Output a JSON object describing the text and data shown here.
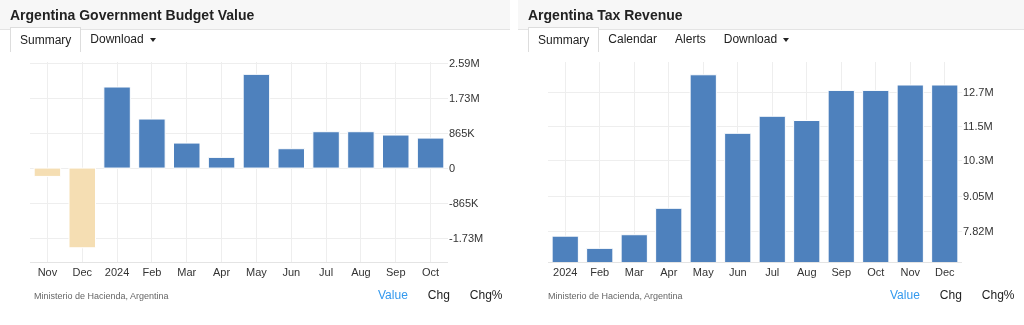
{
  "chart_data": [
    {
      "type": "bar",
      "title": "Argentina Government Budget Value",
      "categories": [
        "Nov",
        "Dec",
        "2024",
        "Feb",
        "Mar",
        "Apr",
        "May",
        "Jun",
        "Jul",
        "Aug",
        "Sep",
        "Oct"
      ],
      "values": [
        -206000,
        -1969000,
        2002000,
        1211000,
        618000,
        264000,
        2315000,
        478000,
        898000,
        898000,
        816000,
        741000
      ],
      "colors": [
        "#f5deb3",
        "#f5deb3",
        "#4e81bd",
        "#4e81bd",
        "#4e81bd",
        "#4e81bd",
        "#4e81bd",
        "#4e81bd",
        "#4e81bd",
        "#4e81bd",
        "#4e81bd",
        "#4e81bd"
      ],
      "ylim": [
        -2320000,
        2620000
      ],
      "yticks": [
        {
          "value": -1730000,
          "label": "-1.73M"
        },
        {
          "value": -865000,
          "label": "-865K"
        },
        0,
        {
          "value": 865000,
          "label": "865K"
        },
        {
          "value": 1730000,
          "label": "1.73M"
        },
        {
          "value": 2590000,
          "label": "2.59M"
        }
      ],
      "grid": true,
      "annotations": [
        "Summary",
        "Download",
        "Ministerio de Hacienda, Argentina",
        "Value",
        "Chg",
        "Chg%"
      ]
    },
    {
      "type": "bar",
      "title": "Argentina Tax Revenue",
      "categories": [
        "2024",
        "Feb",
        "Mar",
        "Apr",
        "May",
        "Jun",
        "Jul",
        "Aug",
        "Sep",
        "Oct",
        "Nov",
        "Dec"
      ],
      "values": [
        7640000,
        7210000,
        7690000,
        8620000,
        13320000,
        11260000,
        11860000,
        11710000,
        12770000,
        12770000,
        12960000,
        12960000
      ],
      "color": "#4e81bd",
      "ylim": [
        6730000,
        13770000
      ],
      "yticks": [
        {
          "value": 7820000,
          "label": "7.82M"
        },
        {
          "value": 9050000,
          "label": "9.05M"
        },
        {
          "value": 10300000,
          "label": "10.3M"
        },
        {
          "value": 11500000,
          "label": "11.5M"
        },
        {
          "value": 12700000,
          "label": "12.7M"
        }
      ],
      "grid": true,
      "annotations": [
        "Summary",
        "Calendar",
        "Alerts",
        "Download",
        "Ministerio de Hacienda, Argentina",
        "Value",
        "Chg",
        "Chg%"
      ]
    }
  ]
}
